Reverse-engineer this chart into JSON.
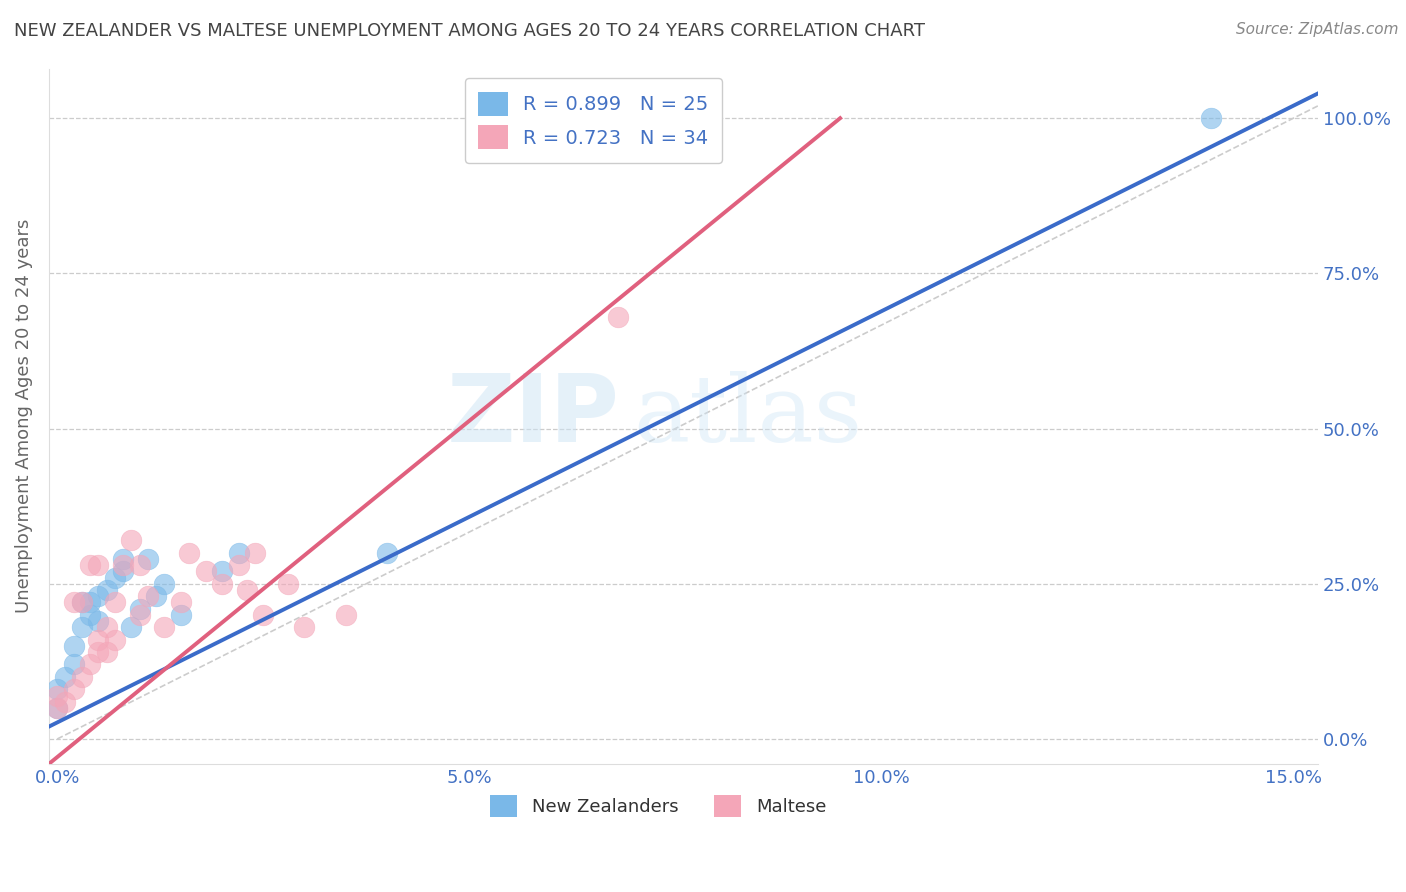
{
  "title": "NEW ZEALANDER VS MALTESE UNEMPLOYMENT AMONG AGES 20 TO 24 YEARS CORRELATION CHART",
  "source": "Source: ZipAtlas.com",
  "ylabel": "Unemployment Among Ages 20 to 24 years",
  "xmin": -0.001,
  "xmax": 0.153,
  "ymin": -0.04,
  "ymax": 1.08,
  "yticks": [
    0.0,
    0.25,
    0.5,
    0.75,
    1.0
  ],
  "ytick_labels": [
    "0.0%",
    "25.0%",
    "50.0%",
    "75.0%",
    "100.0%"
  ],
  "xticks": [
    0.0,
    0.05,
    0.1,
    0.15
  ],
  "xtick_labels": [
    "0.0%",
    "5.0%",
    "10.0%",
    "15.0%"
  ],
  "nz_color": "#7ab8e8",
  "maltese_color": "#f4a6b8",
  "nz_R": 0.899,
  "nz_N": 25,
  "maltese_R": 0.723,
  "maltese_N": 34,
  "watermark_zip": "ZIP",
  "watermark_atlas": "atlas",
  "legend_labels": [
    "New Zealanders",
    "Maltese"
  ],
  "nz_points_x": [
    0.0,
    0.0,
    0.001,
    0.002,
    0.002,
    0.003,
    0.003,
    0.004,
    0.004,
    0.005,
    0.005,
    0.006,
    0.007,
    0.008,
    0.008,
    0.009,
    0.01,
    0.011,
    0.012,
    0.013,
    0.015,
    0.02,
    0.022,
    0.04,
    0.14
  ],
  "nz_points_y": [
    0.05,
    0.08,
    0.1,
    0.12,
    0.15,
    0.18,
    0.22,
    0.2,
    0.22,
    0.19,
    0.23,
    0.24,
    0.26,
    0.27,
    0.29,
    0.18,
    0.21,
    0.29,
    0.23,
    0.25,
    0.2,
    0.27,
    0.3,
    0.3,
    1.0
  ],
  "maltese_points_x": [
    0.0,
    0.0,
    0.001,
    0.002,
    0.002,
    0.003,
    0.003,
    0.004,
    0.004,
    0.005,
    0.005,
    0.005,
    0.006,
    0.006,
    0.007,
    0.007,
    0.008,
    0.009,
    0.01,
    0.01,
    0.011,
    0.013,
    0.015,
    0.016,
    0.018,
    0.02,
    0.022,
    0.023,
    0.024,
    0.025,
    0.028,
    0.03,
    0.035,
    0.068
  ],
  "maltese_points_y": [
    0.05,
    0.07,
    0.06,
    0.08,
    0.22,
    0.1,
    0.22,
    0.12,
    0.28,
    0.14,
    0.16,
    0.28,
    0.14,
    0.18,
    0.16,
    0.22,
    0.28,
    0.32,
    0.2,
    0.28,
    0.23,
    0.18,
    0.22,
    0.3,
    0.27,
    0.25,
    0.28,
    0.24,
    0.3,
    0.2,
    0.25,
    0.18,
    0.2,
    0.68
  ],
  "nz_line_x": [
    -0.001,
    0.153
  ],
  "nz_line_y": [
    0.02,
    1.04
  ],
  "maltese_line_x": [
    -0.001,
    0.095
  ],
  "maltese_line_y": [
    -0.04,
    1.0
  ],
  "diag_line_x": [
    0.0,
    0.153
  ],
  "diag_line_y": [
    0.0,
    1.02
  ],
  "background_color": "#ffffff",
  "grid_color": "#cccccc",
  "title_color": "#444444",
  "axis_label_color": "#666666",
  "tick_color": "#4472c4",
  "source_color": "#888888",
  "nz_line_color": "#3a6bc9",
  "maltese_line_color": "#e0607e"
}
